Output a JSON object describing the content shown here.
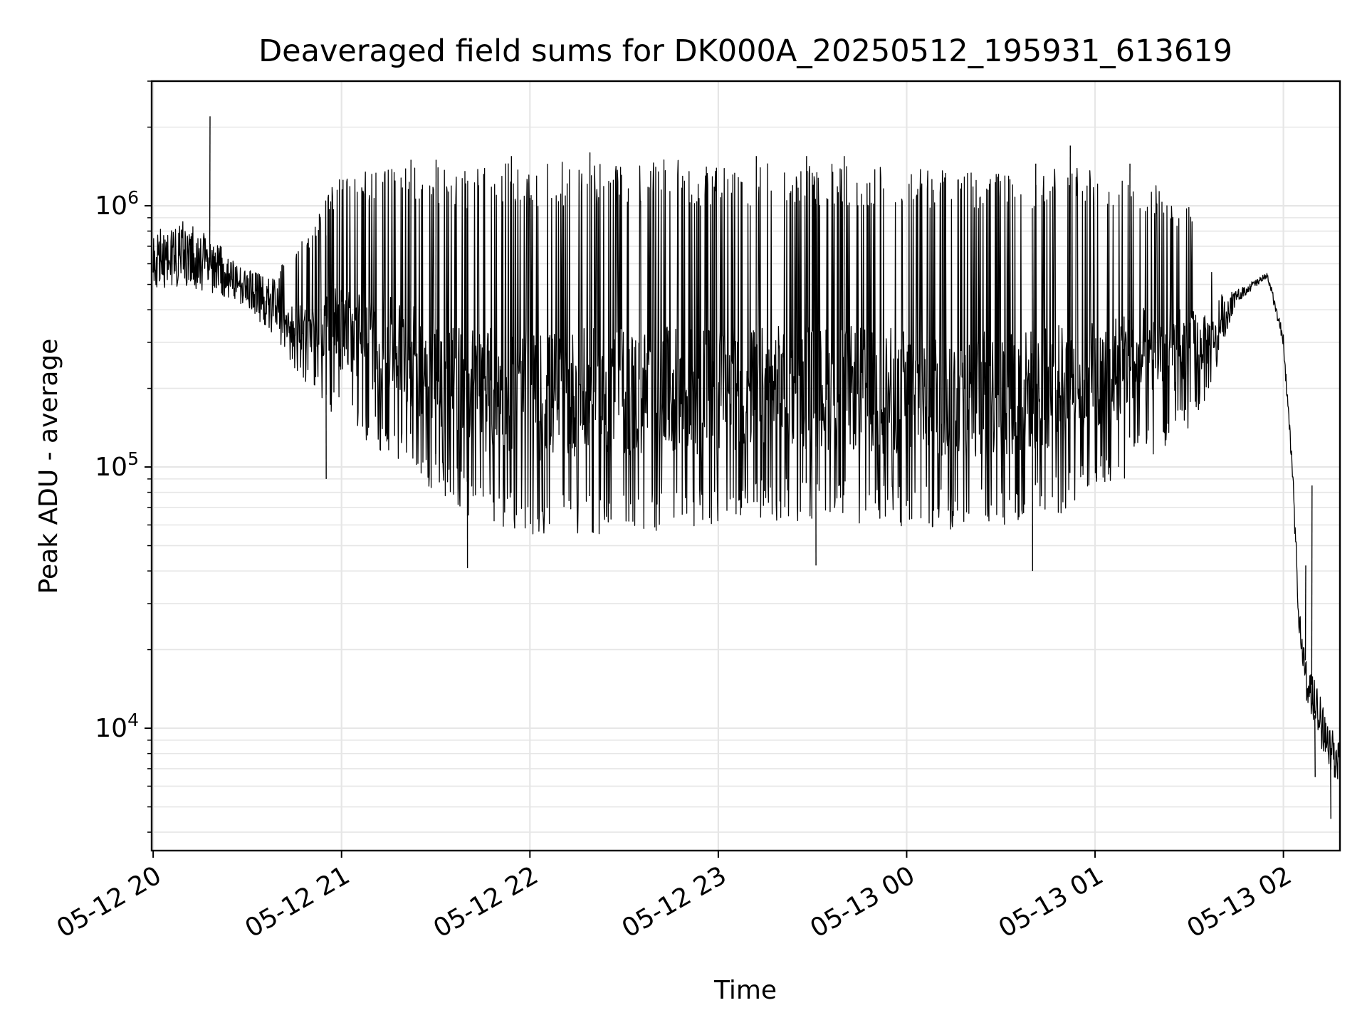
{
  "chart_data": {
    "type": "line",
    "title": "Deaveraged field sums for DK000A_20250512_195931_613619",
    "xlabel": "Time",
    "ylabel": "Peak ADU - average",
    "y_scale": "log",
    "ylim": [
      3400,
      3000000
    ],
    "xlim": [
      "2025-05-12 19:59:31",
      "2025-05-13 02:18:00"
    ],
    "grid": true,
    "line_color": "#000000",
    "grid_color": "#e6e6e6",
    "x_ticks": [
      {
        "t": "2025-05-12 20:00:00",
        "label": "05-12 20"
      },
      {
        "t": "2025-05-12 21:00:00",
        "label": "05-12 21"
      },
      {
        "t": "2025-05-12 22:00:00",
        "label": "05-12 22"
      },
      {
        "t": "2025-05-12 23:00:00",
        "label": "05-12 23"
      },
      {
        "t": "2025-05-13 00:00:00",
        "label": "05-13 00"
      },
      {
        "t": "2025-05-13 01:00:00",
        "label": "05-13 01"
      },
      {
        "t": "2025-05-13 02:00:00",
        "label": "05-13 02"
      }
    ],
    "y_ticks": [
      {
        "value": 10000,
        "base": "10",
        "exp": "4"
      },
      {
        "value": 100000,
        "base": "10",
        "exp": "5"
      },
      {
        "value": 1000000,
        "base": "10",
        "exp": "6"
      }
    ],
    "series": [
      {
        "x": [
          "2025-05-12 20:00",
          "2025-05-12 20:10",
          "2025-05-12 20:15",
          "2025-05-12 20:20",
          "2025-05-12 20:25",
          "2025-05-12 20:30",
          "2025-05-12 20:35",
          "2025-05-12 20:40",
          "2025-05-12 20:45",
          "2025-05-12 20:50",
          "2025-05-12 20:55",
          "2025-05-12 21:00",
          "2025-05-12 21:10",
          "2025-05-12 21:20",
          "2025-05-12 21:30",
          "2025-05-12 21:40",
          "2025-05-12 21:50",
          "2025-05-12 22:00",
          "2025-05-12 22:15",
          "2025-05-12 22:30",
          "2025-05-12 22:45",
          "2025-05-12 23:00",
          "2025-05-12 23:15",
          "2025-05-12 23:30",
          "2025-05-12 23:45",
          "2025-05-13 00:00",
          "2025-05-13 00:15",
          "2025-05-13 00:30",
          "2025-05-13 00:45",
          "2025-05-13 01:00",
          "2025-05-13 01:15",
          "2025-05-13 01:30",
          "2025-05-13 01:35",
          "2025-05-13 01:40",
          "2025-05-13 01:45",
          "2025-05-13 01:50",
          "2025-05-13 01:55",
          "2025-05-13 02:00",
          "2025-05-13 02:03",
          "2025-05-13 02:05",
          "2025-05-13 02:07",
          "2025-05-13 02:08",
          "2025-05-13 02:10",
          "2025-05-13 02:12",
          "2025-05-13 02:14",
          "2025-05-13 02:16",
          "2025-05-13 02:18"
        ],
        "low": [
          450000,
          450000,
          440000,
          430000,
          420000,
          380000,
          330000,
          280000,
          230000,
          200000,
          170000,
          150000,
          120000,
          100000,
          80000,
          65000,
          58000,
          55000,
          55000,
          56000,
          57000,
          60000,
          62000,
          62000,
          60000,
          58000,
          57000,
          58000,
          62000,
          75000,
          100000,
          140000,
          180000,
          260000,
          420000,
          470000,
          520000,
          280000,
          80000,
          22000,
          13000,
          11000,
          10000,
          8000,
          7000,
          6200,
          6000
        ],
        "high": [
          850000,
          950000,
          900000,
          780000,
          650000,
          600000,
          580000,
          600000,
          700000,
          800000,
          1100000,
          1300000,
          1400000,
          1450000,
          1400000,
          1400000,
          1450000,
          1450000,
          1500000,
          1500000,
          1500000,
          1450000,
          1450000,
          1450000,
          1450000,
          1450000,
          1400000,
          1400000,
          1400000,
          1400000,
          1300000,
          1000000,
          700000,
          500000,
          480000,
          520000,
          560000,
          330000,
          100000,
          30000,
          20000,
          18000,
          16000,
          14000,
          12000,
          10000,
          9000
        ],
        "spikes": [
          {
            "x": "2025-05-12 20:18",
            "y": 2200000
          },
          {
            "x": "2025-05-12 21:22",
            "y": 1500000
          },
          {
            "x": "2025-05-12 21:30",
            "y": 1500000
          },
          {
            "x": "2025-05-12 21:54",
            "y": 1550000
          },
          {
            "x": "2025-05-12 22:19",
            "y": 1600000
          },
          {
            "x": "2025-05-12 23:12",
            "y": 1550000
          },
          {
            "x": "2025-05-12 23:28",
            "y": 1550000
          },
          {
            "x": "2025-05-12 23:40",
            "y": 1550000
          },
          {
            "x": "2025-05-13 00:41",
            "y": 1450000
          },
          {
            "x": "2025-05-13 00:52",
            "y": 1700000
          },
          {
            "x": "2025-05-13 01:11",
            "y": 1450000
          },
          {
            "x": "2025-05-12 21:40",
            "y": 41000
          },
          {
            "x": "2025-05-12 23:31",
            "y": 42000
          },
          {
            "x": "2025-05-13 00:40",
            "y": 40000
          },
          {
            "x": "2025-05-12 20:55",
            "y": 90000
          },
          {
            "x": "2025-05-13 02:07",
            "y": 42000
          },
          {
            "x": "2025-05-13 02:09",
            "y": 85000
          },
          {
            "x": "2025-05-13 02:10",
            "y": 6500
          },
          {
            "x": "2025-05-13 02:15",
            "y": 4500
          }
        ]
      }
    ]
  }
}
